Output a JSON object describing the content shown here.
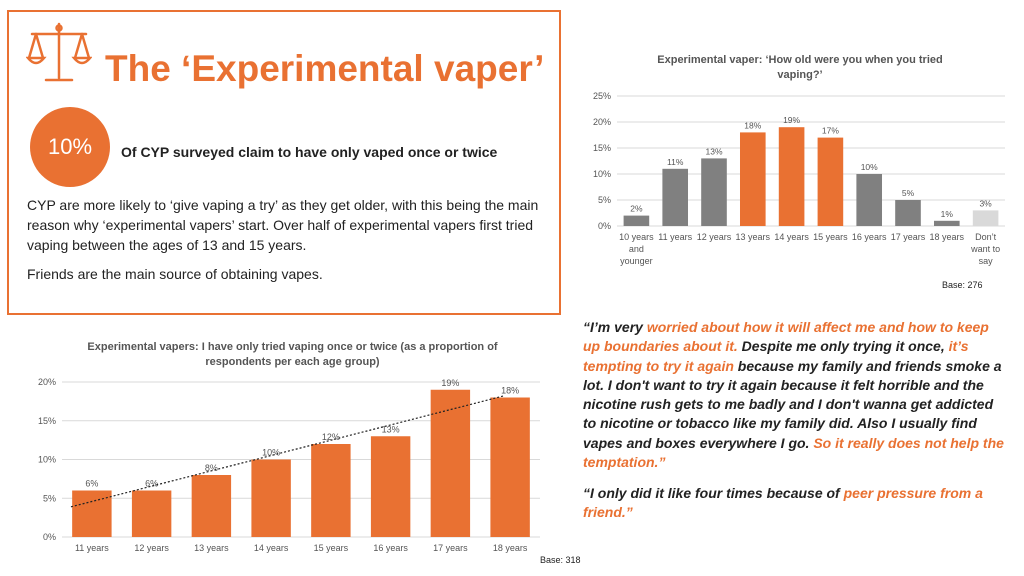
{
  "header": {
    "title": "The ‘Experimental vaper’",
    "badge": "10%",
    "badge_text": "Of CYP surveyed claim to have only vaped once or twice",
    "para1": "CYP are more likely to ‘give vaping a try’ as they get older, with this being the main reason why ‘experimental vapers’ start. Over half of experimental vapers first tried vaping between the ages of 13 and 15 years.",
    "para2": "Friends are the main source of obtaining vapes."
  },
  "colors": {
    "accent": "#E97132",
    "grey": "#808080",
    "light_grey": "#D9D9D9"
  },
  "icon": "scales-icon",
  "chart_data": [
    {
      "type": "bar",
      "title": "Experimental vaper: ‘How old were you when you tried vaping?’",
      "categories": [
        [
          "10 years",
          "and",
          "younger"
        ],
        [
          "11 years"
        ],
        [
          "12 years"
        ],
        [
          "13 years"
        ],
        [
          "14 years"
        ],
        [
          "15 years"
        ],
        [
          "16 years"
        ],
        [
          "17 years"
        ],
        [
          "18 years"
        ],
        [
          "Don’t",
          "want to",
          "say"
        ]
      ],
      "values": [
        2,
        11,
        13,
        18,
        19,
        17,
        10,
        5,
        1,
        3
      ],
      "data_labels": [
        "2%",
        "11%",
        "13%",
        "18%",
        "19%",
        "17%",
        "10%",
        "5%",
        "1%",
        "3%"
      ],
      "bar_colors": [
        "#808080",
        "#808080",
        "#808080",
        "#E97132",
        "#E97132",
        "#E97132",
        "#808080",
        "#808080",
        "#808080",
        "#D9D9D9"
      ],
      "yticks": [
        "0%",
        "5%",
        "10%",
        "15%",
        "20%",
        "25%"
      ],
      "ylim": [
        0,
        25
      ],
      "grid": true,
      "base": "Base: 276"
    },
    {
      "type": "bar",
      "title": "Experimental vapers: I have only tried vaping once or twice (as a proportion of respondents per each age group)",
      "categories": [
        "11 years",
        "12 years",
        "13 years",
        "14 years",
        "15 years",
        "16 years",
        "17 years",
        "18 years"
      ],
      "values": [
        6,
        6,
        8,
        10,
        12,
        13,
        19,
        18
      ],
      "data_labels": [
        "6%",
        "6%",
        "8%",
        "10%",
        "12%",
        "13%",
        "19%",
        "18%"
      ],
      "bar_colors": [
        "#E97132",
        "#E97132",
        "#E97132",
        "#E97132",
        "#E97132",
        "#E97132",
        "#E97132",
        "#E97132"
      ],
      "yticks": [
        "0%",
        "5%",
        "10%",
        "15%",
        "20%"
      ],
      "ylim": [
        0,
        20
      ],
      "grid": true,
      "trendline": true,
      "base": "Base: 318"
    }
  ],
  "quotes": [
    [
      {
        "t": "“I’m very ",
        "hl": false
      },
      {
        "t": "worried about how it will affect me and how to keep up boundaries about it.",
        "hl": true
      },
      {
        "t": " Despite me only trying it once, ",
        "hl": false
      },
      {
        "t": "it’s tempting to try it again",
        "hl": true
      },
      {
        "t": " because my family and friends smoke a lot. I don't want to try it again because it felt horrible and the nicotine rush gets to me badly and I don't wanna get addicted to nicotine or tobacco like my family did. Also I usually find vapes and boxes everywhere I go. ",
        "hl": false
      },
      {
        "t": "So it really does not help the temptation.”",
        "hl": true
      }
    ],
    [
      {
        "t": "“I only did it like four times because of ",
        "hl": false
      },
      {
        "t": "peer pressure from a friend.”",
        "hl": true
      }
    ]
  ]
}
